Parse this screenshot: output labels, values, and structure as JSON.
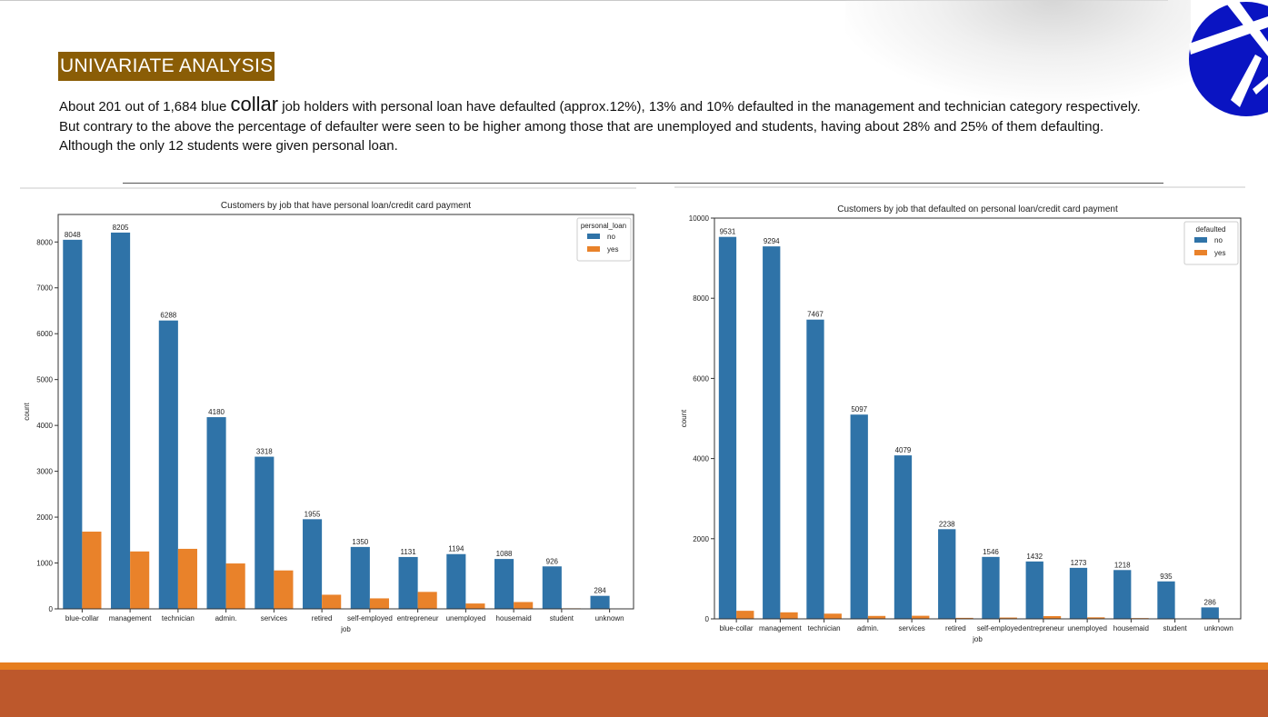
{
  "slide": {
    "title": "UNIVARIATE ANALYSIS",
    "p1_a": "About 201 out of 1,684 blue ",
    "p1_big": "collar",
    "p1_b": " job holders with personal loan have defaulted (approx.12%), 13% and 10% defaulted in the management and technician category respectively.",
    "p2": "But contrary to the above the percentage of defaulter were seen to be higher among those that are unemployed and students, having about 28% and 25% of them defaulting.",
    "p3": "Although the only 12 students were given personal loan."
  },
  "colors": {
    "no": "#2f73a8",
    "yes": "#e9822a",
    "title_bg": "#8a5d06",
    "logo": "#0a14c2",
    "band_orange": "#e67e1f",
    "band_rust": "#bd582c"
  },
  "chart_data": [
    {
      "type": "bar",
      "title": "Customers by job that have personal loan/credit card payment",
      "xlabel": "job",
      "ylabel": "count",
      "categories": [
        "blue-collar",
        "management",
        "technician",
        "admin.",
        "services",
        "retired",
        "self-employed",
        "entrepreneur",
        "unemployed",
        "housemaid",
        "student",
        "unknown"
      ],
      "series": [
        {
          "name": "no",
          "values": [
            8048,
            8205,
            6288,
            4180,
            3318,
            1955,
            1350,
            1131,
            1194,
            1088,
            926,
            284
          ]
        },
        {
          "name": "yes",
          "values": [
            1684,
            1252,
            1309,
            990,
            838,
            308,
            229,
            370,
            117,
            149,
            12,
            4
          ]
        }
      ],
      "data_labels": [
        "8048",
        "8205",
        "6288",
        "4180",
        "3318",
        "1955",
        "1350",
        "1131",
        "1194",
        "1088",
        "926",
        "284"
      ],
      "ylim": [
        0,
        8600
      ],
      "yticks": [
        0,
        1000,
        2000,
        3000,
        4000,
        5000,
        6000,
        7000,
        8000
      ],
      "legend_title": "personal_loan",
      "legend_placement": "top-right",
      "grid": false
    },
    {
      "type": "bar",
      "title": "Customers by job that defaulted on personal loan/credit card payment",
      "xlabel": "job",
      "ylabel": "count",
      "categories": [
        "blue-collar",
        "management",
        "technician",
        "admin.",
        "services",
        "retired",
        "self-employed",
        "entrepreneur",
        "unemployed",
        "housemaid",
        "student",
        "unknown"
      ],
      "series": [
        {
          "name": "no",
          "values": [
            9531,
            9294,
            7467,
            5097,
            4079,
            2238,
            1546,
            1432,
            1273,
            1218,
            935,
            286
          ]
        },
        {
          "name": "yes",
          "values": [
            201,
            163,
            130,
            73,
            77,
            25,
            33,
            69,
            38,
            19,
            3,
            2
          ]
        }
      ],
      "data_labels": [
        "9531",
        "9294",
        "7467",
        "5097",
        "4079",
        "2238",
        "1546",
        "1432",
        "1273",
        "1218",
        "935",
        "286"
      ],
      "ylim": [
        0,
        10000
      ],
      "yticks": [
        0,
        2000,
        4000,
        6000,
        8000,
        10000
      ],
      "legend_title": "defaulted",
      "legend_placement": "top-right",
      "grid": false
    }
  ]
}
